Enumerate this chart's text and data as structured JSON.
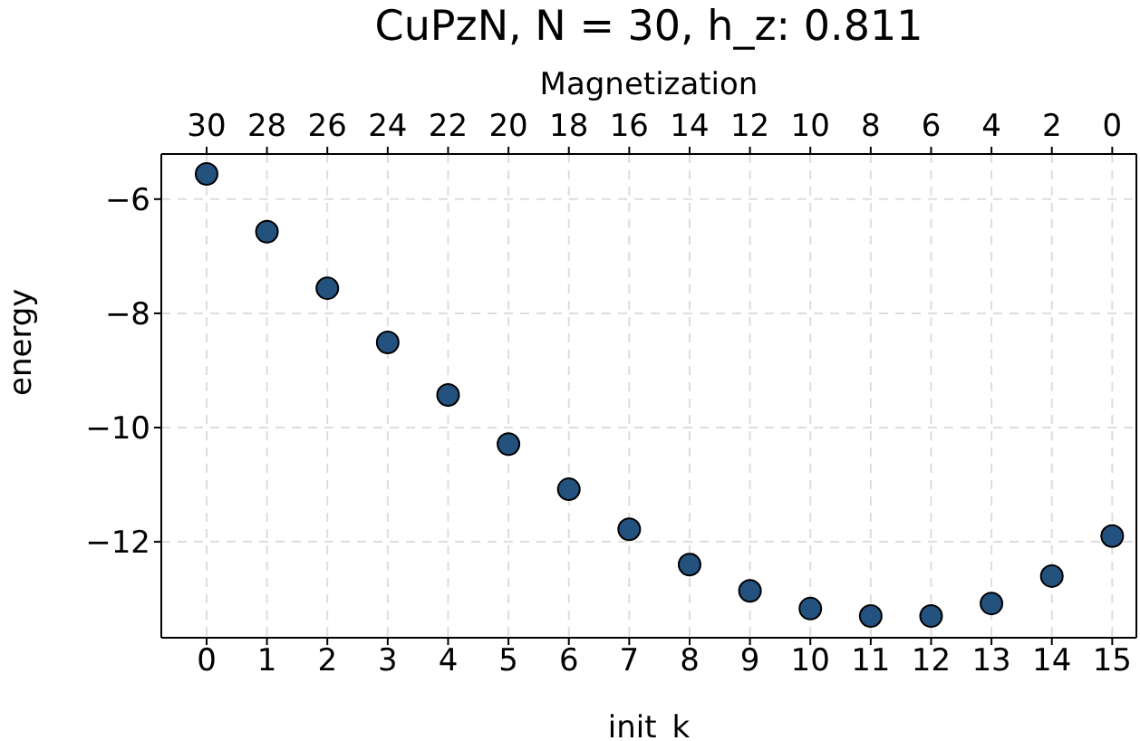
{
  "chart_data": {
    "type": "scatter",
    "title": "CuPzN, N = 30, h_z: 0.811",
    "xlabel": "init_k",
    "ylabel": "energy",
    "x2label": "Magnetization",
    "x": [
      0,
      1,
      2,
      3,
      4,
      5,
      6,
      7,
      8,
      9,
      10,
      11,
      12,
      13,
      14,
      15
    ],
    "series": [
      {
        "color": "#23527f",
        "values": [
          -5.56,
          -6.57,
          -7.56,
          -8.51,
          -9.43,
          -10.29,
          -11.08,
          -11.78,
          -12.4,
          -12.86,
          -13.17,
          -13.3,
          -13.3,
          -13.08,
          -12.6,
          -11.9
        ]
      }
    ],
    "xlim": [
      -0.75,
      15.4
    ],
    "xticks": [
      0,
      1,
      2,
      3,
      4,
      5,
      6,
      7,
      8,
      9,
      10,
      11,
      12,
      13,
      14,
      15
    ],
    "x2lim": [
      31.5,
      -0.8
    ],
    "x2ticks": [
      30,
      28,
      26,
      24,
      22,
      20,
      18,
      16,
      14,
      12,
      10,
      8,
      6,
      4,
      2,
      0
    ],
    "ylim": [
      -13.68,
      -5.21
    ],
    "yticks": [
      -12,
      -10,
      -8,
      -6
    ],
    "grid": true,
    "marker": "circle"
  }
}
